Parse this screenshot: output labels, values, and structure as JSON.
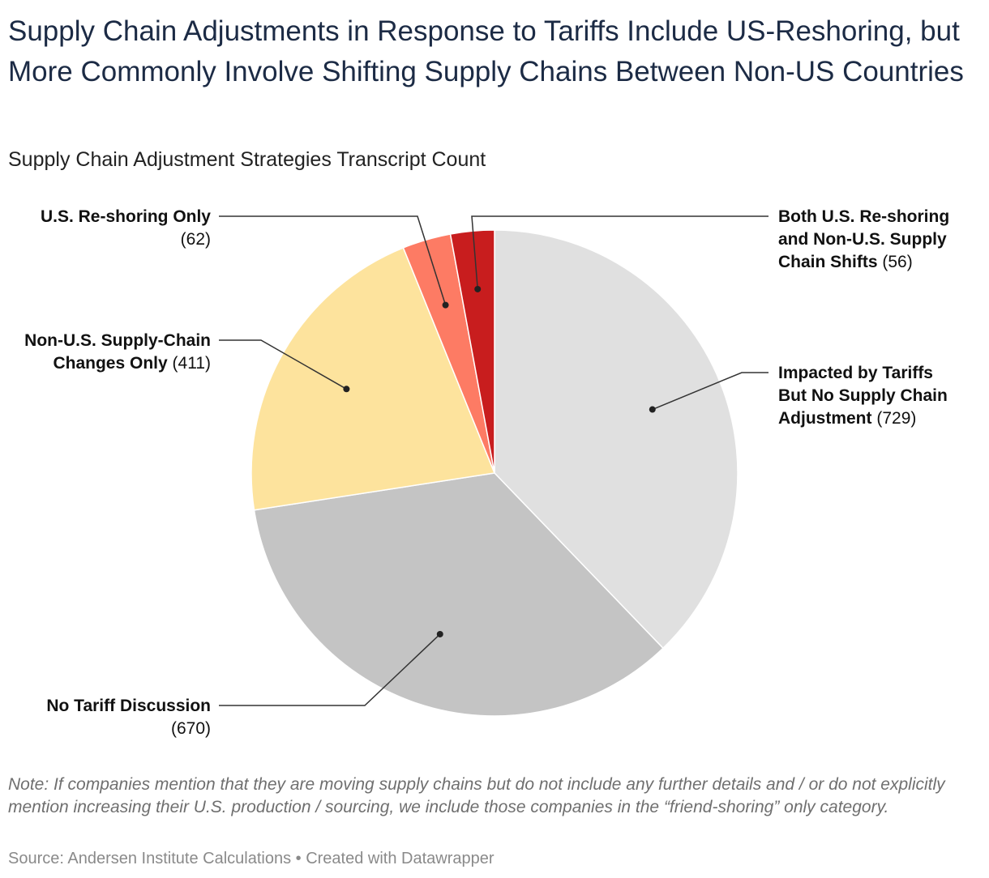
{
  "title": "Supply Chain Adjustments in Response to Tariffs Include US-Reshoring, but More Commonly Involve Shifting Supply Chains Between Non-US Countries",
  "subtitle": "Supply Chain Adjustment Strategies Transcript Count",
  "chart_data": {
    "type": "pie",
    "slices": [
      {
        "label": "Impacted by Tariffs But No Supply Chain Adjustment",
        "value": 729,
        "color": "#e0e0e0"
      },
      {
        "label": "No Tariff Discussion",
        "value": 670,
        "color": "#c4c4c4"
      },
      {
        "label": "Non-U.S. Supply-Chain Changes Only",
        "value": 411,
        "color": "#fde39d"
      },
      {
        "label": "U.S. Re-shoring Only",
        "value": 62,
        "color": "#fd7b64"
      },
      {
        "label": "Both U.S. Re-shoring and Non-U.S. Supply Chain Shifts",
        "value": 56,
        "color": "#c81d1e"
      }
    ],
    "value_labels": [
      "(729)",
      "(670)",
      "(411)",
      "(62)",
      "(56)"
    ]
  },
  "labels": {
    "impacted_l1": "Impacted by Tariffs",
    "impacted_l2": "But No Supply Chain",
    "impacted_l3": "Adjustment",
    "impacted_val": "(729)",
    "notariff_l1": "No Tariff Discussion",
    "notariff_val": "(670)",
    "nonus_l1": "Non-U.S. Supply-Chain",
    "nonus_l2": "Changes Only",
    "nonus_val": "(411)",
    "reshoring_l1": "U.S. Re-shoring Only",
    "reshoring_val": "(62)",
    "both_l1": "Both U.S. Re-shoring",
    "both_l2": "and Non-U.S. Supply",
    "both_l3": "Chain Shifts",
    "both_val": "(56)"
  },
  "note": "Note: If companies mention that they are moving supply chains but do not include any further details and / or do not explicitly mention increasing their U.S. production / sourcing, we include those companies in the “friend-shoring” only category.",
  "source": "Source: Andersen Institute Calculations • Created with Datawrapper"
}
